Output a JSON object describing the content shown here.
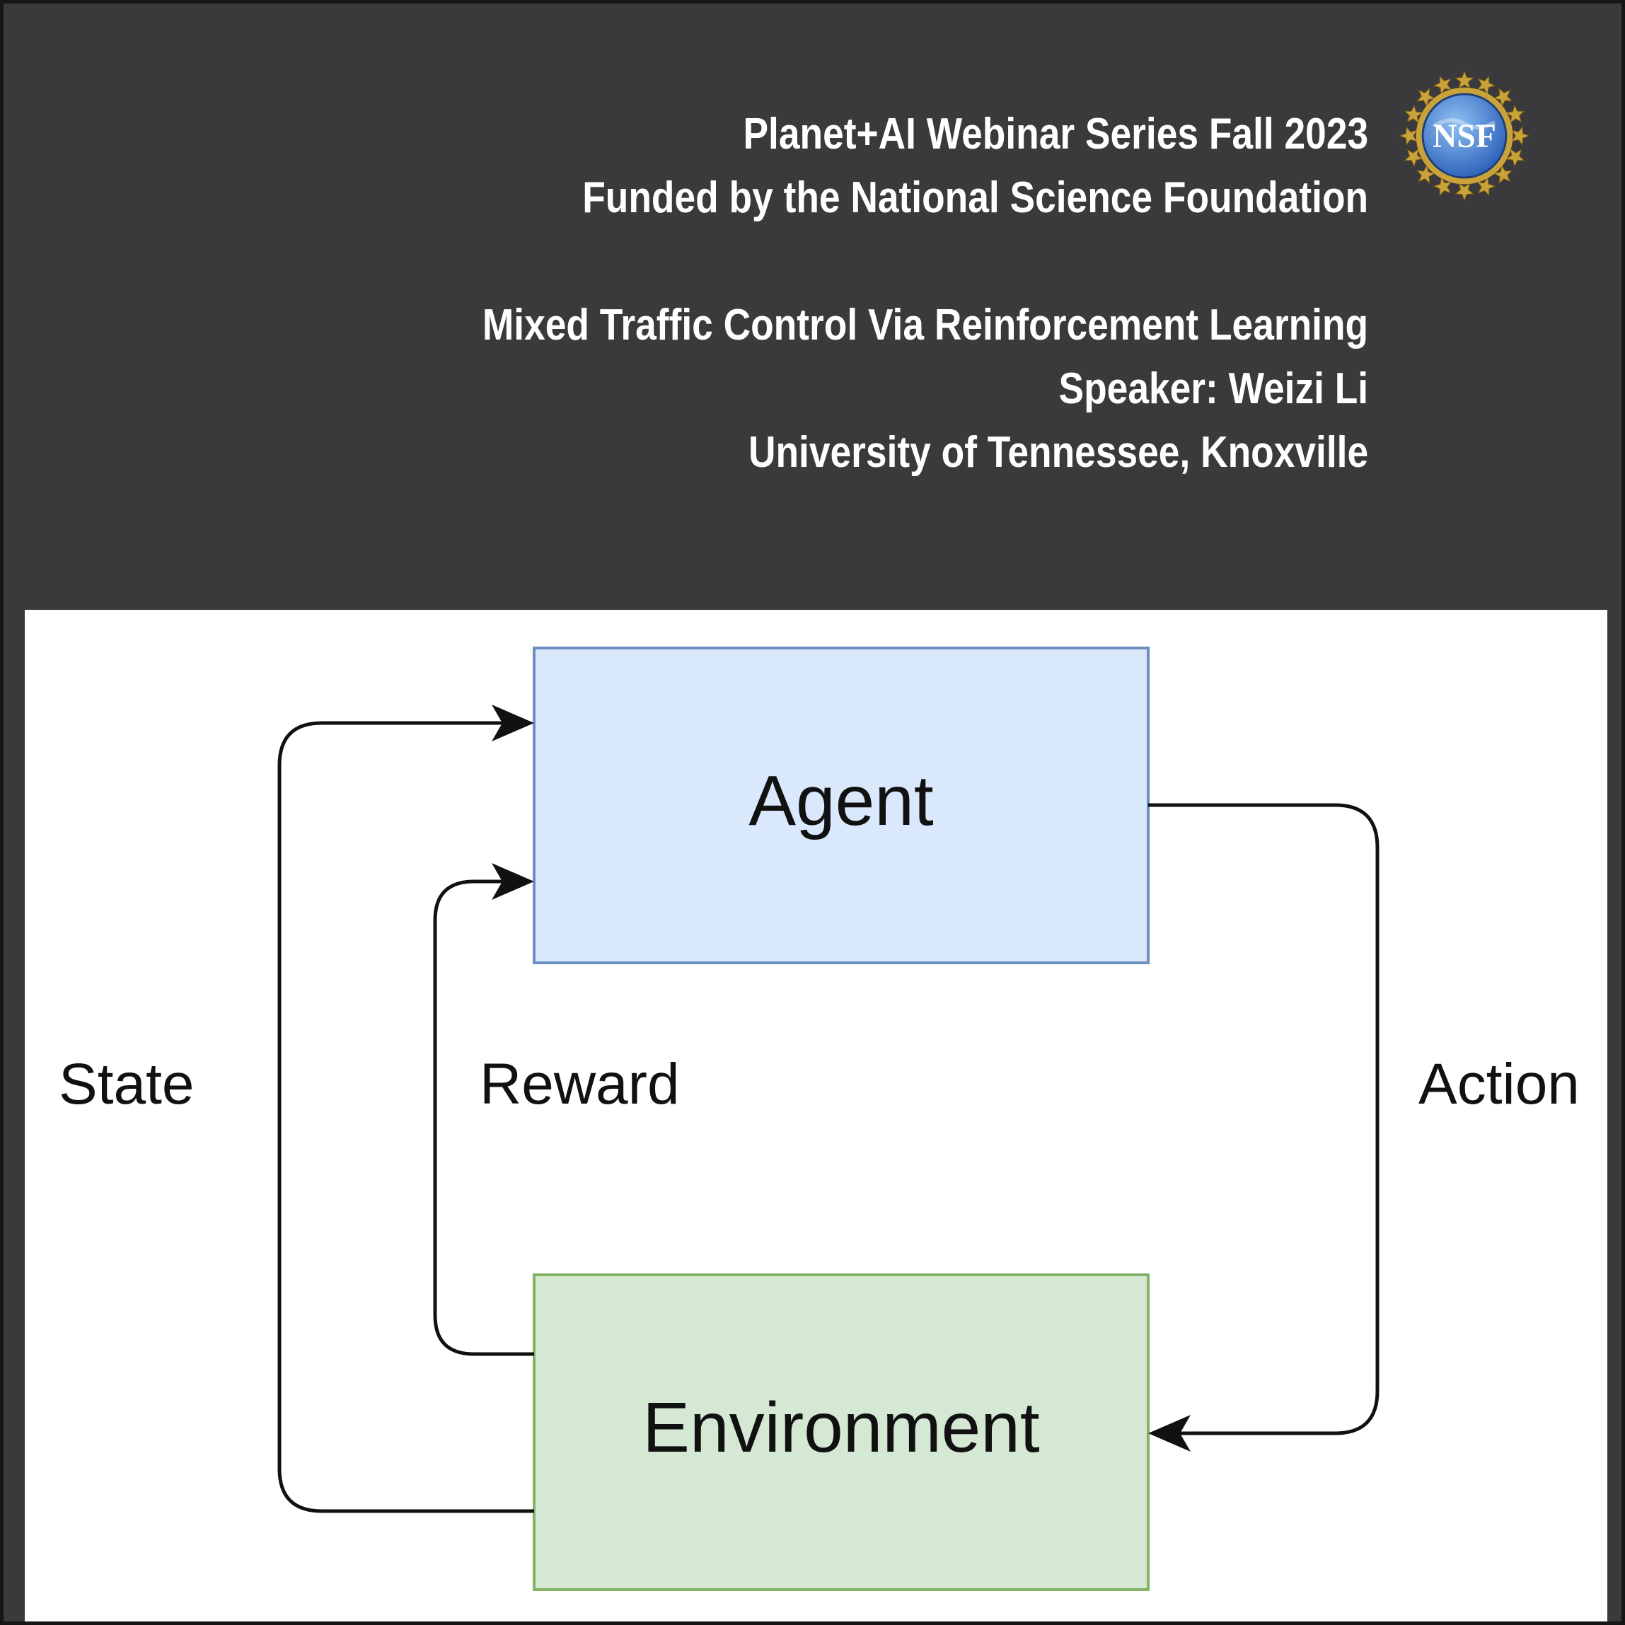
{
  "header": {
    "line1": "Planet+AI Webinar Series Fall 2023",
    "line2": "Funded by the National Science Foundation",
    "line3": "Mixed Traffic Control Via Reinforcement Learning",
    "line4": "Speaker: Weizi Li",
    "line5": "University of Tennessee, Knoxville"
  },
  "logo": {
    "text": "NSF",
    "colors": {
      "ring": "#c9a23a",
      "globe": "#2a5fb8",
      "globe_light": "#8fc0f2"
    }
  },
  "diagram": {
    "nodes": {
      "agent": {
        "label": "Agent",
        "fill": "#dae8fc",
        "stroke": "#6c8ebf"
      },
      "environment": {
        "label": "Environment",
        "fill": "#d5e8d4",
        "stroke": "#82b366"
      }
    },
    "edges": {
      "state": {
        "label": "State"
      },
      "reward": {
        "label": "Reward"
      },
      "action": {
        "label": "Action"
      }
    }
  }
}
